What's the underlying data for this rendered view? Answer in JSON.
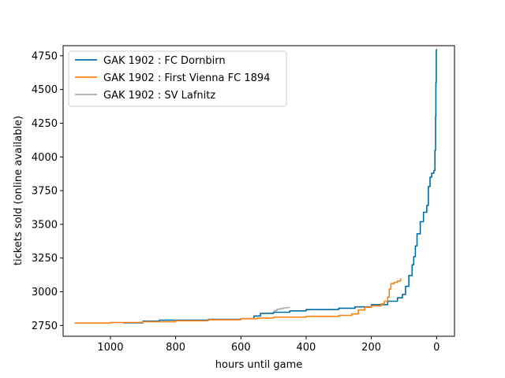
{
  "chart_data": {
    "type": "line",
    "xlabel": "hours until game",
    "ylabel": "tickets sold (online available)",
    "x_inverted": true,
    "xlim": [
      1145,
      -55
    ],
    "ylim": [
      2670,
      4825
    ],
    "xticks": [
      1000,
      800,
      600,
      400,
      200,
      0
    ],
    "yticks": [
      2750,
      3000,
      3250,
      3500,
      3750,
      4000,
      4250,
      4500,
      4750
    ],
    "grid": false,
    "legend_position": "upper-left",
    "series": [
      {
        "name": "GAK 1902 : FC Dornbirn",
        "color": "#006ba4",
        "points": [
          [
            960,
            2770
          ],
          [
            900,
            2782
          ],
          [
            850,
            2790
          ],
          [
            700,
            2795
          ],
          [
            600,
            2800
          ],
          [
            560,
            2820
          ],
          [
            540,
            2840
          ],
          [
            500,
            2848
          ],
          [
            450,
            2858
          ],
          [
            400,
            2868
          ],
          [
            300,
            2878
          ],
          [
            250,
            2888
          ],
          [
            200,
            2905
          ],
          [
            150,
            2930
          ],
          [
            120,
            2955
          ],
          [
            105,
            2980
          ],
          [
            95,
            3040
          ],
          [
            85,
            3120
          ],
          [
            75,
            3200
          ],
          [
            70,
            3260
          ],
          [
            65,
            3340
          ],
          [
            60,
            3430
          ],
          [
            50,
            3520
          ],
          [
            40,
            3590
          ],
          [
            30,
            3640
          ],
          [
            25,
            3780
          ],
          [
            20,
            3850
          ],
          [
            15,
            3880
          ],
          [
            8,
            3900
          ],
          [
            5,
            4050
          ],
          [
            3,
            4300
          ],
          [
            2,
            4550
          ],
          [
            1,
            4790
          ],
          [
            0,
            4800
          ]
        ]
      },
      {
        "name": "GAK 1902 : First Vienna FC 1894",
        "color": "#ff800e",
        "points": [
          [
            1110,
            2768
          ],
          [
            1000,
            2772
          ],
          [
            900,
            2778
          ],
          [
            800,
            2785
          ],
          [
            700,
            2792
          ],
          [
            600,
            2800
          ],
          [
            550,
            2805
          ],
          [
            500,
            2812
          ],
          [
            400,
            2818
          ],
          [
            300,
            2825
          ],
          [
            260,
            2835
          ],
          [
            240,
            2865
          ],
          [
            220,
            2885
          ],
          [
            200,
            2895
          ],
          [
            170,
            2910
          ],
          [
            160,
            2930
          ],
          [
            150,
            2960
          ],
          [
            145,
            3020
          ],
          [
            140,
            3060
          ],
          [
            130,
            3070
          ],
          [
            120,
            3080
          ],
          [
            110,
            3100
          ]
        ]
      },
      {
        "name": "GAK 1902 : SV Lafnitz",
        "color": "#ababab",
        "points": [
          [
            500,
            2860
          ],
          [
            490,
            2870
          ],
          [
            480,
            2875
          ],
          [
            470,
            2880
          ],
          [
            460,
            2883
          ],
          [
            450,
            2885
          ]
        ]
      }
    ]
  }
}
